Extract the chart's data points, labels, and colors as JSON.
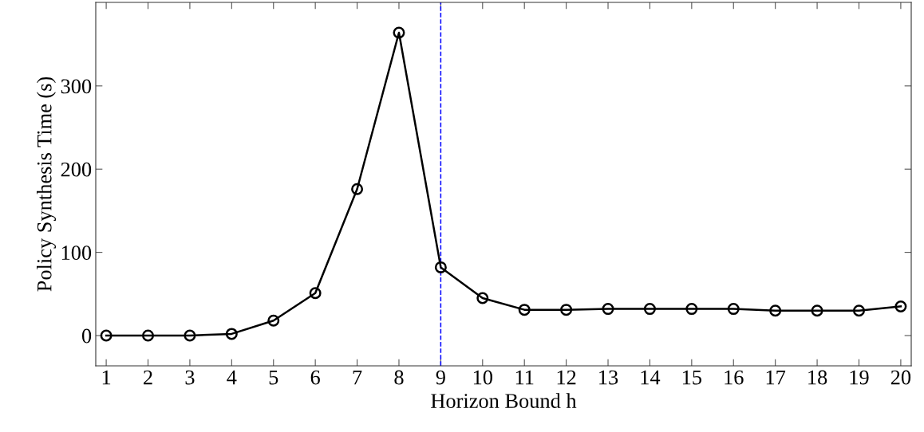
{
  "chart_data": {
    "type": "line",
    "xlabel": "Horizon Bound h",
    "ylabel": "Policy Synthesis Time (s)",
    "x": [
      1,
      2,
      3,
      4,
      5,
      6,
      7,
      8,
      9,
      10,
      11,
      12,
      13,
      14,
      15,
      16,
      17,
      18,
      19,
      20
    ],
    "series": [
      {
        "color": "#000000",
        "values": [
          0,
          0,
          0,
          2,
          18,
          51,
          176,
          364,
          82,
          45,
          31,
          31,
          32,
          32,
          32,
          32,
          30,
          30,
          30,
          35
        ]
      }
    ],
    "xlim": [
      0.75,
      20.25
    ],
    "xticks": [
      1,
      2,
      3,
      4,
      5,
      6,
      7,
      8,
      9,
      10,
      11,
      12,
      13,
      14,
      15,
      16,
      17,
      18,
      19,
      20
    ],
    "ylim": [
      -36.4,
      400.4
    ],
    "yticks": [
      0,
      100,
      200,
      300
    ],
    "ref_lines": [
      {
        "axis": "x",
        "value": 9,
        "color": "#0000ff",
        "line_style": "dashed"
      }
    ],
    "marker": "circle",
    "line_style": "solid",
    "grid": false,
    "legend": false
  }
}
